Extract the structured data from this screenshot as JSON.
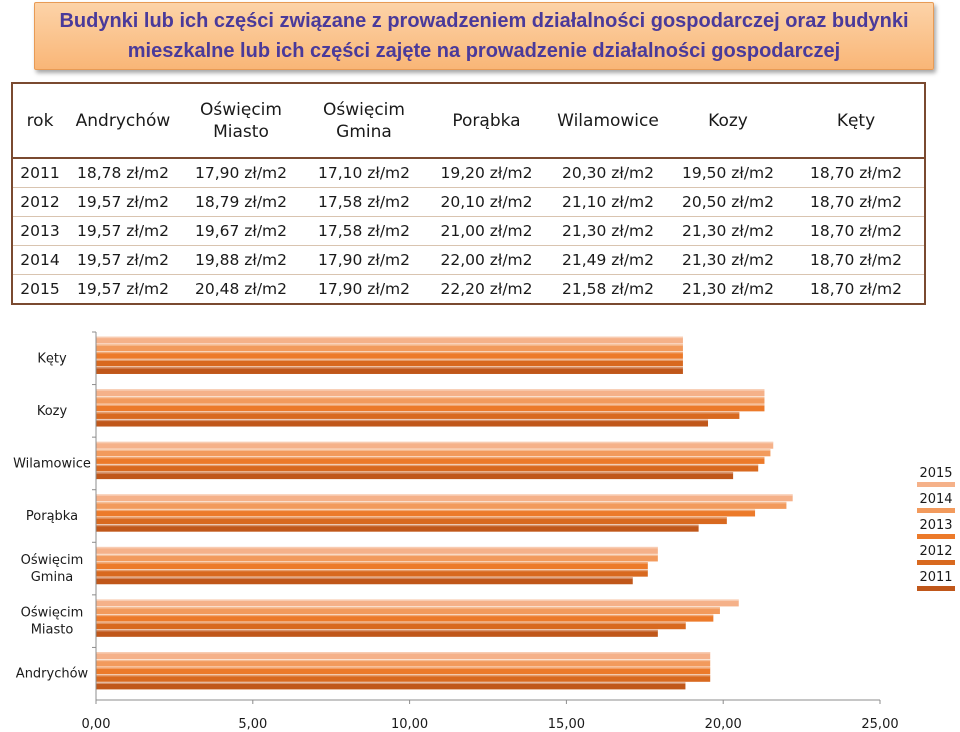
{
  "title": "Budynki lub ich części związane z prowadzeniem działalności gospodarczej oraz budynki mieszkalne lub ich części zajęte na prowadzenie działalności gospodarczej",
  "table": {
    "headers": [
      "rok",
      "Andrychów",
      "Oświęcim Miasto",
      "Oświęcim Gmina",
      "Porąbka",
      "Wilamowice",
      "Kozy",
      "Kęty"
    ],
    "rows": [
      [
        "2011",
        "18,78 zł/m2",
        "17,90 zł/m2",
        "17,10 zł/m2",
        "19,20 zł/m2",
        "20,30 zł/m2",
        "19,50 zł/m2",
        "18,70 zł/m2"
      ],
      [
        "2012",
        "19,57 zł/m2",
        "18,79 zł/m2",
        "17,58 zł/m2",
        "20,10 zł/m2",
        "21,10 zł/m2",
        "20,50 zł/m2",
        "18,70 zł/m2"
      ],
      [
        "2013",
        "19,57 zł/m2",
        "19,67 zł/m2",
        "17,58 zł/m2",
        "21,00 zł/m2",
        "21,30 zł/m2",
        "21,30 zł/m2",
        "18,70 zł/m2"
      ],
      [
        "2014",
        "19,57 zł/m2",
        "19,88 zł/m2",
        "17,90 zł/m2",
        "22,00 zł/m2",
        "21,49 zł/m2",
        "21,30 zł/m2",
        "18,70 zł/m2"
      ],
      [
        "2015",
        "19,57 zł/m2",
        "20,48 zł/m2",
        "17,90 zł/m2",
        "22,20 zł/m2",
        "21,58 zł/m2",
        "21,30 zł/m2",
        "18,70 zł/m2"
      ]
    ]
  },
  "chart_data": {
    "type": "bar",
    "orientation": "horizontal",
    "title": "",
    "categories": [
      "Andrychów",
      "Oświęcim Miasto",
      "Oświęcim Gmina",
      "Porąbka",
      "Wilamowice",
      "Kozy",
      "Kęty"
    ],
    "series": [
      {
        "name": "2011",
        "color": "#c0571a",
        "values": [
          18.78,
          17.9,
          17.1,
          19.2,
          20.3,
          19.5,
          18.7
        ]
      },
      {
        "name": "2012",
        "color": "#d8691f",
        "values": [
          19.57,
          18.79,
          17.58,
          20.1,
          21.1,
          20.5,
          18.7
        ]
      },
      {
        "name": "2013",
        "color": "#ec7a2a",
        "values": [
          19.57,
          19.67,
          17.58,
          21.0,
          21.3,
          21.3,
          18.7
        ]
      },
      {
        "name": "2014",
        "color": "#f29a5c",
        "values": [
          19.57,
          19.88,
          17.9,
          22.0,
          21.49,
          21.3,
          18.7
        ]
      },
      {
        "name": "2015",
        "color": "#f5b189",
        "values": [
          19.57,
          20.48,
          17.9,
          22.2,
          21.58,
          21.3,
          18.7
        ]
      }
    ],
    "xlim": [
      0,
      25
    ],
    "xticks": [
      "0,00",
      "5,00",
      "10,00",
      "15,00",
      "20,00",
      "25,00"
    ],
    "category_labels": [
      [
        "Andrychów"
      ],
      [
        "Oświęcim",
        "Miasto"
      ],
      [
        "Oświęcim",
        "Gmina"
      ],
      [
        "Porąbka"
      ],
      [
        "Wilamowice"
      ],
      [
        "Kozy"
      ],
      [
        "Kęty"
      ]
    ],
    "legend": [
      "2015",
      "2014",
      "2013",
      "2012",
      "2011"
    ],
    "legend_position": "right",
    "xlabel": "",
    "ylabel": "",
    "grid": false
  }
}
